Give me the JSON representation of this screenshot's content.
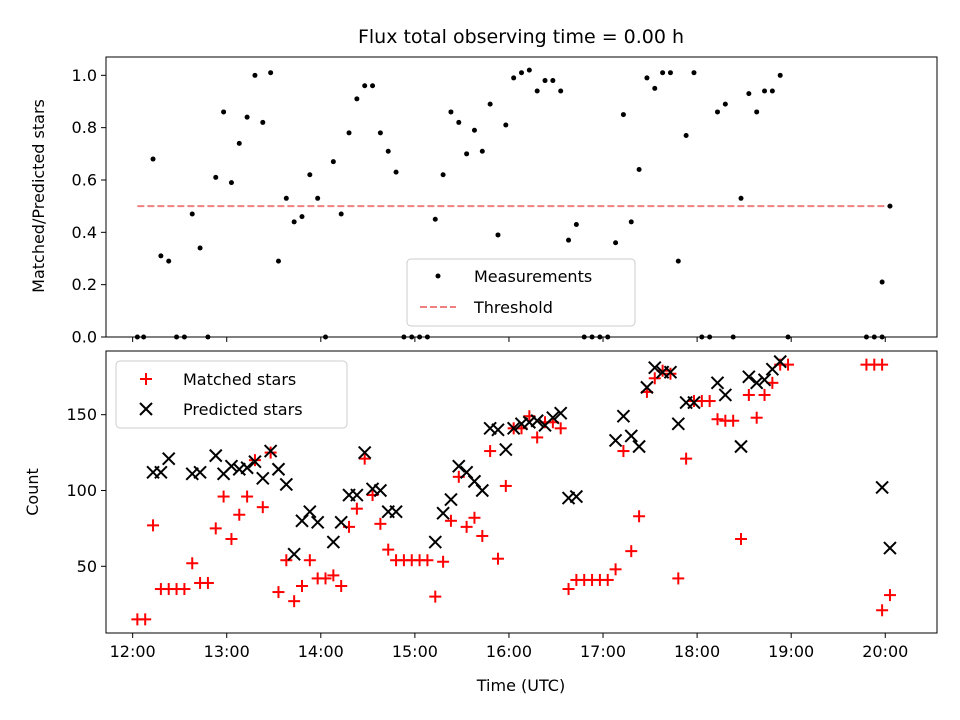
{
  "chart_data": [
    {
      "type": "scatter",
      "title": "Flux total observing time = 0.00 h",
      "xlabel": "",
      "ylabel": "Matched/Predicted stars",
      "xlim": [
        "11:43",
        "20:33"
      ],
      "ylim": [
        0,
        1.07
      ],
      "yticks": [
        "0.0",
        "0.2",
        "0.4",
        "0.6",
        "0.8",
        "1.0"
      ],
      "legend_position": "lower-center",
      "series": [
        {
          "name": "Measurements",
          "color": "#000000",
          "marker": "dot",
          "points": [
            [
              "12:03",
              0
            ],
            [
              "12:07",
              0
            ],
            [
              "12:13",
              0.68
            ],
            [
              "12:18",
              0.31
            ],
            [
              "12:23",
              0.29
            ],
            [
              "12:28",
              0
            ],
            [
              "12:33",
              0
            ],
            [
              "12:38",
              0.47
            ],
            [
              "12:43",
              0.34
            ],
            [
              "12:48",
              0
            ],
            [
              "12:53",
              0.61
            ],
            [
              "12:58",
              0.86
            ],
            [
              "13:03",
              0.59
            ],
            [
              "13:08",
              0.74
            ],
            [
              "13:13",
              0.84
            ],
            [
              "13:18",
              1.0
            ],
            [
              "13:23",
              0.82
            ],
            [
              "13:28",
              1.01
            ],
            [
              "13:33",
              0.29
            ],
            [
              "13:38",
              0.53
            ],
            [
              "13:43",
              0.44
            ],
            [
              "13:48",
              0.46
            ],
            [
              "13:53",
              0.62
            ],
            [
              "13:58",
              0.53
            ],
            [
              "14:03",
              0
            ],
            [
              "14:08",
              0.67
            ],
            [
              "14:13",
              0.47
            ],
            [
              "14:18",
              0.78
            ],
            [
              "14:23",
              0.91
            ],
            [
              "14:28",
              0.96
            ],
            [
              "14:33",
              0.96
            ],
            [
              "14:38",
              0.78
            ],
            [
              "14:43",
              0.71
            ],
            [
              "14:48",
              0.63
            ],
            [
              "14:53",
              0
            ],
            [
              "14:58",
              0
            ],
            [
              "15:03",
              0
            ],
            [
              "15:08",
              0
            ],
            [
              "15:13",
              0.45
            ],
            [
              "15:18",
              0.62
            ],
            [
              "15:23",
              0.86
            ],
            [
              "15:28",
              0.82
            ],
            [
              "15:33",
              0.7
            ],
            [
              "15:38",
              0.79
            ],
            [
              "15:43",
              0.71
            ],
            [
              "15:48",
              0.89
            ],
            [
              "15:53",
              0.39
            ],
            [
              "15:58",
              0.81
            ],
            [
              "16:03",
              0.99
            ],
            [
              "16:08",
              1.01
            ],
            [
              "16:13",
              1.02
            ],
            [
              "16:18",
              0.94
            ],
            [
              "16:23",
              0.98
            ],
            [
              "16:28",
              0.98
            ],
            [
              "16:33",
              0.94
            ],
            [
              "16:38",
              0.37
            ],
            [
              "16:43",
              0.43
            ],
            [
              "16:48",
              0
            ],
            [
              "16:53",
              0
            ],
            [
              "16:58",
              0
            ],
            [
              "17:03",
              0
            ],
            [
              "17:08",
              0.36
            ],
            [
              "17:13",
              0.85
            ],
            [
              "17:18",
              0.44
            ],
            [
              "17:23",
              0.64
            ],
            [
              "17:28",
              0.99
            ],
            [
              "17:33",
              0.95
            ],
            [
              "17:38",
              1.01
            ],
            [
              "17:43",
              1.01
            ],
            [
              "17:48",
              0.29
            ],
            [
              "17:53",
              0.77
            ],
            [
              "17:58",
              1.01
            ],
            [
              "18:03",
              0
            ],
            [
              "18:08",
              0
            ],
            [
              "18:13",
              0.86
            ],
            [
              "18:18",
              0.89
            ],
            [
              "18:23",
              0
            ],
            [
              "18:28",
              0.53
            ],
            [
              "18:33",
              0.93
            ],
            [
              "18:38",
              0.86
            ],
            [
              "18:43",
              0.94
            ],
            [
              "18:48",
              0.94
            ],
            [
              "18:53",
              1.0
            ],
            [
              "18:58",
              0
            ],
            [
              "19:48",
              0
            ],
            [
              "19:53",
              0
            ],
            [
              "19:58",
              0
            ],
            [
              "19:58",
              0.21
            ],
            [
              "20:03",
              0.5
            ]
          ]
        },
        {
          "name": "Threshold",
          "color": "#f08080",
          "line_style": "dashed",
          "points": [
            [
              "12:03",
              0.5
            ],
            [
              "20:03",
              0.5
            ]
          ]
        }
      ]
    },
    {
      "type": "scatter",
      "title": "",
      "xlabel": "Time (UTC)",
      "ylabel": "Count",
      "xlim": [
        "11:43",
        "20:33"
      ],
      "ylim": [
        6,
        192
      ],
      "yticks": [
        "50",
        "100",
        "150"
      ],
      "xticks": [
        "12:00",
        "13:00",
        "14:00",
        "15:00",
        "16:00",
        "17:00",
        "18:00",
        "19:00",
        "20:00"
      ],
      "legend_position": "upper-left",
      "series": [
        {
          "name": "Matched stars",
          "color": "#ff0000",
          "marker": "plus",
          "points": [
            [
              "12:03",
              15
            ],
            [
              "12:08",
              15
            ],
            [
              "12:13",
              77
            ],
            [
              "12:18",
              35
            ],
            [
              "12:23",
              35
            ],
            [
              "12:28",
              35
            ],
            [
              "12:33",
              35
            ],
            [
              "12:38",
              52
            ],
            [
              "12:43",
              39
            ],
            [
              "12:48",
              39
            ],
            [
              "12:53",
              75
            ],
            [
              "12:58",
              96
            ],
            [
              "13:03",
              68
            ],
            [
              "13:08",
              84
            ],
            [
              "13:13",
              96
            ],
            [
              "13:18",
              120
            ],
            [
              "13:23",
              89
            ],
            [
              "13:28",
              125
            ],
            [
              "13:33",
              33
            ],
            [
              "13:38",
              54
            ],
            [
              "13:43",
              27
            ],
            [
              "13:48",
              37
            ],
            [
              "13:53",
              54
            ],
            [
              "13:58",
              42
            ],
            [
              "14:03",
              42
            ],
            [
              "14:08",
              44
            ],
            [
              "14:13",
              37
            ],
            [
              "14:18",
              76
            ],
            [
              "14:23",
              88
            ],
            [
              "14:28",
              121
            ],
            [
              "14:33",
              97
            ],
            [
              "14:38",
              78
            ],
            [
              "14:43",
              61
            ],
            [
              "14:48",
              54
            ],
            [
              "14:53",
              54
            ],
            [
              "14:58",
              54
            ],
            [
              "15:03",
              54
            ],
            [
              "15:08",
              54
            ],
            [
              "15:13",
              30
            ],
            [
              "15:18",
              53
            ],
            [
              "15:23",
              80
            ],
            [
              "15:28",
              109
            ],
            [
              "15:33",
              76
            ],
            [
              "15:38",
              82
            ],
            [
              "15:43",
              70
            ],
            [
              "15:48",
              126
            ],
            [
              "15:53",
              55
            ],
            [
              "15:58",
              103
            ],
            [
              "16:03",
              141
            ],
            [
              "16:08",
              141
            ],
            [
              "16:13",
              149
            ],
            [
              "16:18",
              135
            ],
            [
              "16:23",
              145
            ],
            [
              "16:28",
              145
            ],
            [
              "16:33",
              141
            ],
            [
              "16:38",
              35
            ],
            [
              "16:43",
              41
            ],
            [
              "16:48",
              41
            ],
            [
              "16:53",
              41
            ],
            [
              "16:58",
              41
            ],
            [
              "17:03",
              41
            ],
            [
              "17:08",
              48
            ],
            [
              "17:13",
              126
            ],
            [
              "17:18",
              60
            ],
            [
              "17:23",
              83
            ],
            [
              "17:28",
              165
            ],
            [
              "17:33",
              174
            ],
            [
              "17:38",
              179
            ],
            [
              "17:43",
              177
            ],
            [
              "17:48",
              42
            ],
            [
              "17:53",
              121
            ],
            [
              "17:58",
              159
            ],
            [
              "18:03",
              159
            ],
            [
              "18:08",
              159
            ],
            [
              "18:13",
              147
            ],
            [
              "18:18",
              146
            ],
            [
              "18:23",
              146
            ],
            [
              "18:28",
              68
            ],
            [
              "18:33",
              163
            ],
            [
              "18:38",
              148
            ],
            [
              "18:43",
              163
            ],
            [
              "18:48",
              171
            ],
            [
              "18:53",
              183
            ],
            [
              "18:58",
              183
            ],
            [
              "19:48",
              183
            ],
            [
              "19:53",
              183
            ],
            [
              "19:58",
              183
            ],
            [
              "19:58",
              21
            ],
            [
              "20:03",
              31
            ]
          ]
        },
        {
          "name": "Predicted stars",
          "color": "#000000",
          "marker": "x",
          "points": [
            [
              "12:13",
              112
            ],
            [
              "12:18",
              112
            ],
            [
              "12:23",
              121
            ],
            [
              "12:38",
              111
            ],
            [
              "12:43",
              112
            ],
            [
              "12:53",
              123
            ],
            [
              "12:58",
              111
            ],
            [
              "13:03",
              116
            ],
            [
              "13:08",
              114
            ],
            [
              "13:13",
              115
            ],
            [
              "13:18",
              119
            ],
            [
              "13:23",
              108
            ],
            [
              "13:28",
              126
            ],
            [
              "13:33",
              114
            ],
            [
              "13:38",
              104
            ],
            [
              "13:43",
              58
            ],
            [
              "13:48",
              80
            ],
            [
              "13:53",
              86
            ],
            [
              "13:58",
              79
            ],
            [
              "14:08",
              66
            ],
            [
              "14:13",
              79
            ],
            [
              "14:18",
              97
            ],
            [
              "14:23",
              97
            ],
            [
              "14:28",
              125
            ],
            [
              "14:33",
              101
            ],
            [
              "14:38",
              100
            ],
            [
              "14:43",
              86
            ],
            [
              "14:48",
              86
            ],
            [
              "15:13",
              66
            ],
            [
              "15:18",
              85
            ],
            [
              "15:23",
              94
            ],
            [
              "15:28",
              116
            ],
            [
              "15:33",
              112
            ],
            [
              "15:38",
              106
            ],
            [
              "15:43",
              100
            ],
            [
              "15:48",
              141
            ],
            [
              "15:53",
              140
            ],
            [
              "15:58",
              127
            ],
            [
              "16:03",
              141
            ],
            [
              "16:08",
              144
            ],
            [
              "16:13",
              145
            ],
            [
              "16:18",
              146
            ],
            [
              "16:23",
              143
            ],
            [
              "16:28",
              148
            ],
            [
              "16:33",
              151
            ],
            [
              "16:38",
              95
            ],
            [
              "16:43",
              96
            ],
            [
              "17:08",
              133
            ],
            [
              "17:13",
              149
            ],
            [
              "17:18",
              136
            ],
            [
              "17:23",
              129
            ],
            [
              "17:28",
              168
            ],
            [
              "17:33",
              181
            ],
            [
              "17:38",
              178
            ],
            [
              "17:43",
              178
            ],
            [
              "17:48",
              144
            ],
            [
              "17:53",
              158
            ],
            [
              "17:58",
              158
            ],
            [
              "18:13",
              171
            ],
            [
              "18:18",
              163
            ],
            [
              "18:28",
              129
            ],
            [
              "18:33",
              175
            ],
            [
              "18:38",
              171
            ],
            [
              "18:43",
              173
            ],
            [
              "18:48",
              180
            ],
            [
              "18:53",
              185
            ],
            [
              "19:58",
              102
            ],
            [
              "20:03",
              62
            ]
          ]
        }
      ]
    }
  ]
}
